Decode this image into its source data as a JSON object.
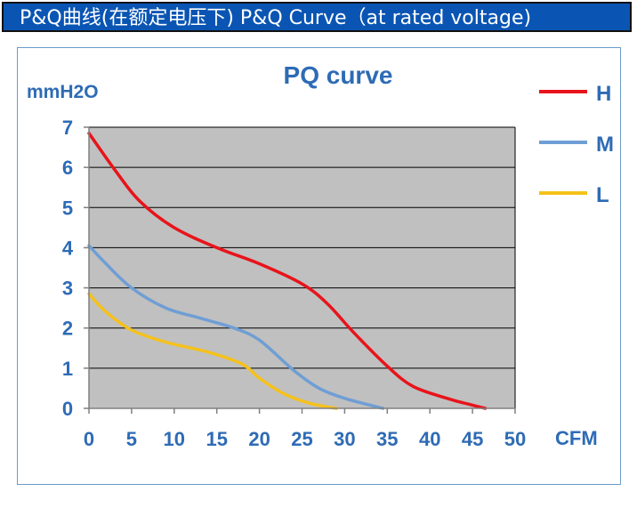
{
  "header": {
    "title": "P&Q曲线(在额定电压下)  P&Q Curve（at rated voltage)",
    "background": "#0a55b3"
  },
  "chart_data": {
    "type": "line",
    "title": "PQ curve",
    "xlabel": "CFM",
    "ylabel": "mmH2O",
    "xlim": [
      0,
      50
    ],
    "ylim": [
      0,
      7
    ],
    "x_ticks": [
      "0",
      "5",
      "10",
      "15",
      "20",
      "25",
      "30",
      "35",
      "40",
      "45",
      "50"
    ],
    "y_ticks": [
      "0",
      "1",
      "2",
      "3",
      "4",
      "5",
      "6",
      "7"
    ],
    "grid": "horizontal",
    "plot_background": "#c0c0c0",
    "legend_position": "right",
    "series": [
      {
        "name": "H",
        "color": "#e8141b",
        "points": [
          [
            0,
            6.85
          ],
          [
            3,
            5.95
          ],
          [
            6,
            5.15
          ],
          [
            10,
            4.5
          ],
          [
            15,
            4.0
          ],
          [
            20,
            3.6
          ],
          [
            25,
            3.1
          ],
          [
            28,
            2.6
          ],
          [
            31,
            1.9
          ],
          [
            35,
            1.05
          ],
          [
            38,
            0.55
          ],
          [
            42,
            0.25
          ],
          [
            45,
            0.08
          ],
          [
            46.5,
            0
          ]
        ]
      },
      {
        "name": "M",
        "color": "#6f9ed4",
        "points": [
          [
            0,
            4.05
          ],
          [
            2,
            3.6
          ],
          [
            5,
            3.0
          ],
          [
            9,
            2.5
          ],
          [
            13,
            2.25
          ],
          [
            17,
            2.0
          ],
          [
            20,
            1.7
          ],
          [
            24,
            0.95
          ],
          [
            27,
            0.5
          ],
          [
            30,
            0.25
          ],
          [
            33,
            0.08
          ],
          [
            34.5,
            0
          ]
        ]
      },
      {
        "name": "L",
        "color": "#f5c11b",
        "points": [
          [
            0,
            2.85
          ],
          [
            2,
            2.4
          ],
          [
            5,
            1.95
          ],
          [
            9,
            1.65
          ],
          [
            14,
            1.4
          ],
          [
            18,
            1.1
          ],
          [
            20,
            0.75
          ],
          [
            23,
            0.35
          ],
          [
            26,
            0.12
          ],
          [
            29,
            0
          ]
        ]
      }
    ]
  }
}
